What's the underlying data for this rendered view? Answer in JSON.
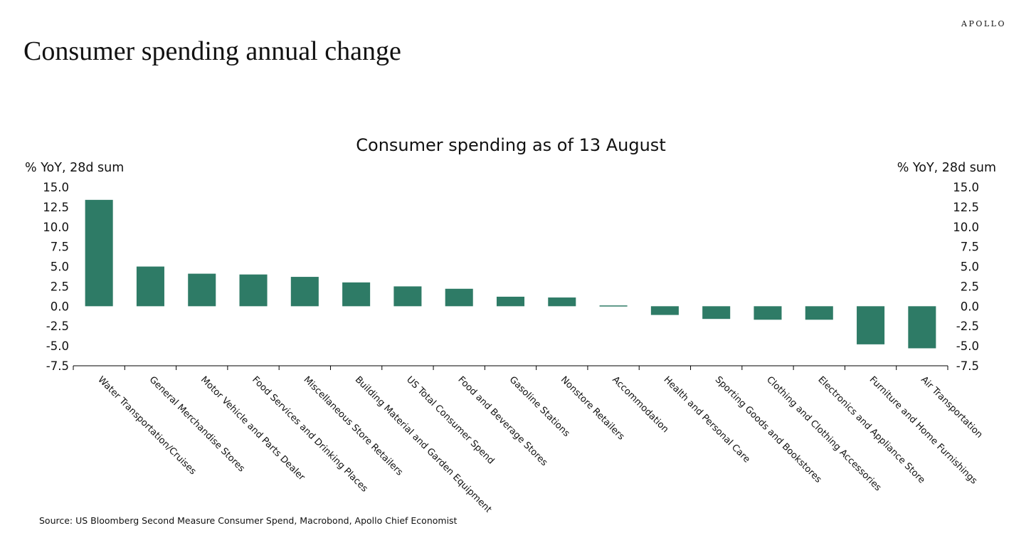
{
  "header": {
    "brand": "APOLLO",
    "title": "Consumer spending annual change"
  },
  "footer": {
    "source": "Source: US Bloomberg Second Measure Consumer Spend, Macrobond, Apollo Chief Economist"
  },
  "colors": {
    "bar": "#2e7b66",
    "axis": "#000000",
    "text": "#111111"
  },
  "chart_data": {
    "type": "bar",
    "title": "Consumer spending as of 13 August",
    "ylabel_left": "% YoY, 28d sum",
    "ylabel_right": "% YoY, 28d sum",
    "ylim": [
      -7.5,
      15.0
    ],
    "yticks": [
      15.0,
      12.5,
      10.0,
      7.5,
      5.0,
      2.5,
      0.0,
      -2.5,
      -5.0,
      -7.5
    ],
    "ytick_labels": [
      "15.0",
      "12.5",
      "10.0",
      "7.5",
      "5.0",
      "2.5",
      "0.0",
      "-2.5",
      "-5.0",
      "-7.5"
    ],
    "grid": false,
    "categories": [
      "Water Transportation/Cruises",
      "General Merchandise Stores",
      "Motor Vehicle and Parts Dealer",
      "Food Services and Drinking Places",
      "Miscellaneous Store Retailers",
      "Building Material and Garden Equipment",
      "US Total Consumer Spend",
      "Food and Beverage Stores",
      "Gasoline Stations",
      "Nonstore Retailers",
      "Accommodation",
      "Health and Personal Care",
      "Sporting Goods and Bookstores",
      "Clothing and Clothing Accessories",
      "Electronics and Appliance Store",
      "Furniture and Home Furnishings",
      "Air Transportation"
    ],
    "values": [
      13.4,
      5.0,
      4.1,
      4.0,
      3.7,
      3.0,
      2.5,
      2.2,
      1.2,
      1.1,
      0.1,
      -1.1,
      -1.6,
      -1.7,
      -1.7,
      -4.8,
      -5.3
    ]
  }
}
